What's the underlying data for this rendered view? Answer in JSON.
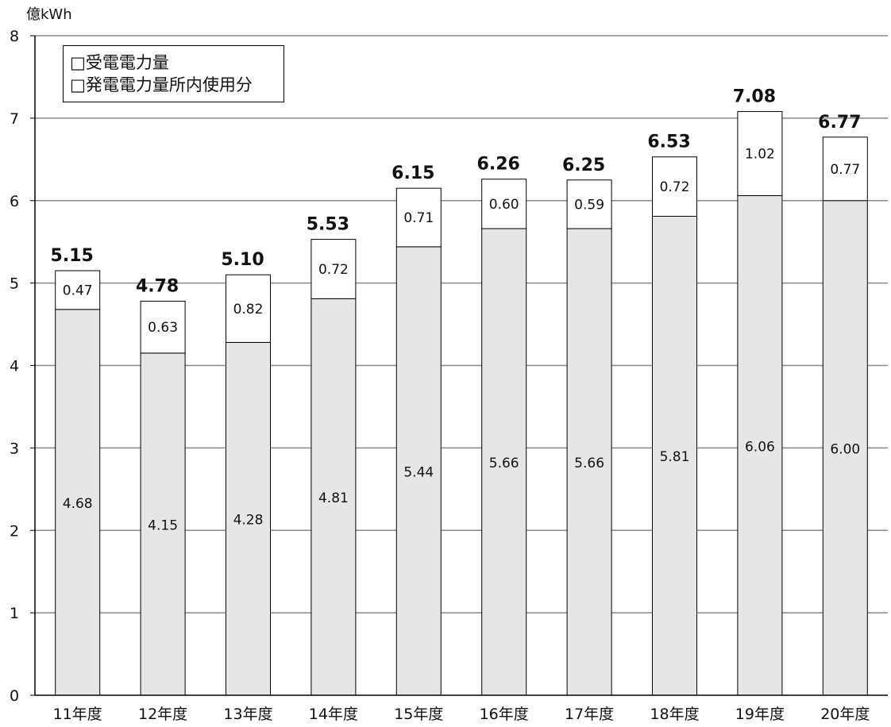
{
  "chart_data": {
    "type": "bar",
    "stacked": true,
    "title": "",
    "ylabel": "億kWh",
    "xlabel": "",
    "ylim": [
      0,
      8
    ],
    "yticks": [
      "0",
      "1",
      "2",
      "3",
      "4",
      "5",
      "6",
      "7",
      "8"
    ],
    "grid": true,
    "legend_position": "top-left",
    "categories": [
      "11年度",
      "12年度",
      "13年度",
      "14年度",
      "15年度",
      "16年度",
      "17年度",
      "18年度",
      "19年度",
      "20年度"
    ],
    "series": [
      {
        "name": "受電電力量",
        "color": "#e6e6e6",
        "values": [
          4.68,
          4.15,
          4.28,
          4.81,
          5.44,
          5.66,
          5.66,
          5.81,
          6.06,
          6.0
        ],
        "labels": [
          "4.68",
          "4.15",
          "4.28",
          "4.81",
          "5.44",
          "5.66",
          "5.66",
          "5.81",
          "6.06",
          "6.00"
        ]
      },
      {
        "name": "発電電力量所内使用分",
        "color": "#ffffff",
        "values": [
          0.47,
          0.63,
          0.82,
          0.72,
          0.71,
          0.6,
          0.59,
          0.72,
          1.02,
          0.77
        ],
        "labels": [
          "0.47",
          "0.63",
          "0.82",
          "0.72",
          "0.71",
          "0.60",
          "0.59",
          "0.72",
          "1.02",
          "0.77"
        ]
      }
    ],
    "totals": [
      5.15,
      4.78,
      5.1,
      5.53,
      6.15,
      6.26,
      6.25,
      6.53,
      7.08,
      6.77
    ],
    "total_labels": [
      "5.15",
      "4.78",
      "5.10",
      "5.53",
      "6.15",
      "6.26",
      "6.25",
      "6.53",
      "7.08",
      "6.77"
    ],
    "legend": [
      "□受電電力量",
      "□発電電力量所内使用分"
    ]
  }
}
